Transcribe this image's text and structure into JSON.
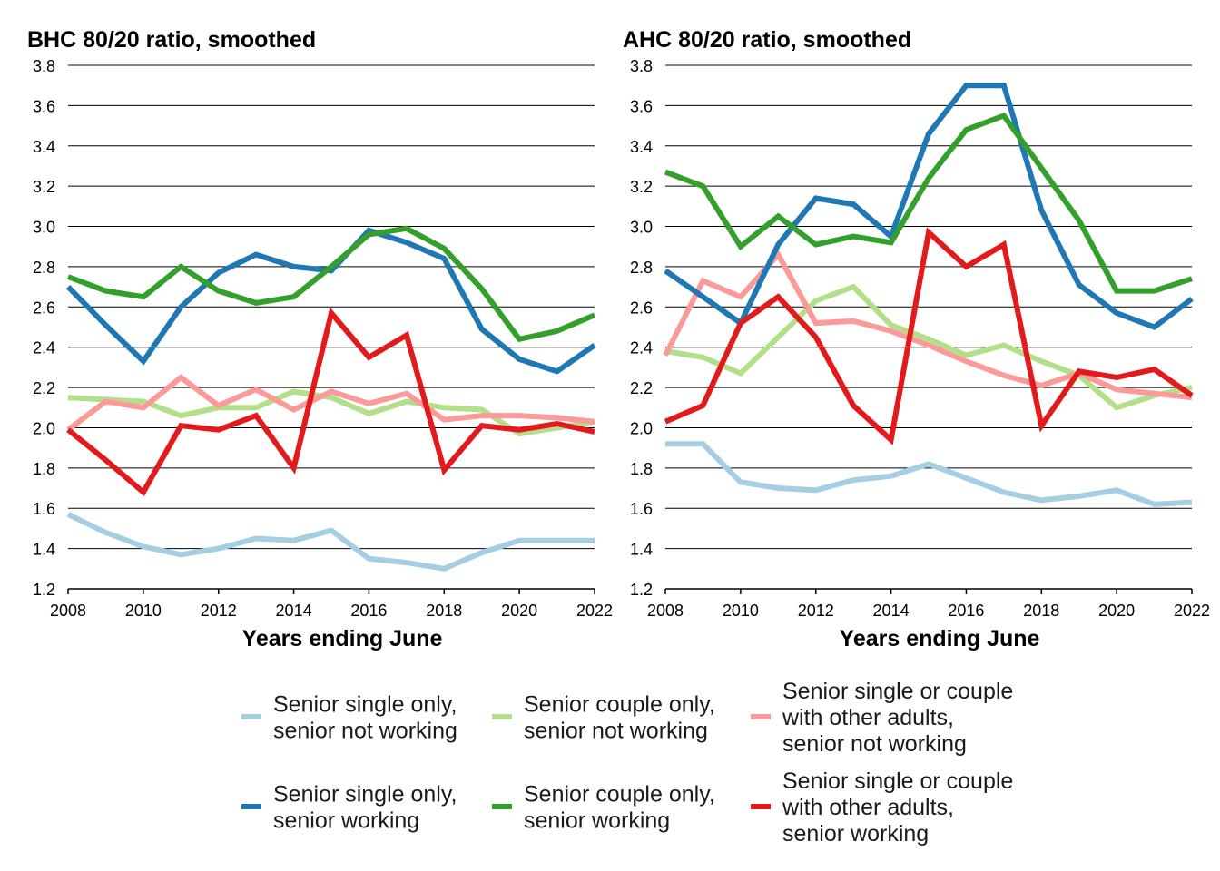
{
  "chart_data": [
    {
      "type": "line",
      "title": "BHC 80/20 ratio, smoothed",
      "xlabel": "Years ending June",
      "ylabel": "",
      "xlim": [
        2008,
        2022
      ],
      "ylim": [
        1.2,
        3.8
      ],
      "x_ticks": [
        "2008",
        "2010",
        "2012",
        "2014",
        "2016",
        "2018",
        "2020",
        "2022"
      ],
      "y_ticks": [
        "1.2",
        "1.4",
        "1.6",
        "1.8",
        "2.0",
        "2.2",
        "2.4",
        "2.6",
        "2.8",
        "3.0",
        "3.2",
        "3.4",
        "3.6",
        "3.8"
      ],
      "grid": true,
      "x": [
        2008,
        2009,
        2010,
        2011,
        2012,
        2013,
        2014,
        2015,
        2016,
        2017,
        2018,
        2019,
        2020,
        2021,
        2022
      ],
      "series": [
        {
          "name": "Senior single only, senior not working",
          "color": "#a6cee3",
          "values": [
            1.57,
            1.48,
            1.41,
            1.37,
            1.4,
            1.45,
            1.44,
            1.49,
            1.35,
            1.33,
            1.3,
            1.38,
            1.44,
            1.44,
            1.44
          ]
        },
        {
          "name": "Senior couple only, senior not working",
          "color": "#b2df8a",
          "values": [
            2.15,
            2.14,
            2.13,
            2.06,
            2.1,
            2.1,
            2.18,
            2.15,
            2.07,
            2.13,
            2.1,
            2.09,
            1.97,
            2.0,
            2.03
          ]
        },
        {
          "name": "Senior single or couple with other adults, senior not working",
          "color": "#fb9a99",
          "values": [
            1.99,
            2.13,
            2.1,
            2.25,
            2.11,
            2.19,
            2.09,
            2.18,
            2.12,
            2.17,
            2.04,
            2.06,
            2.06,
            2.05,
            2.03
          ]
        },
        {
          "name": "Senior single only, senior working",
          "color": "#1f78b4",
          "values": [
            2.7,
            2.51,
            2.33,
            2.6,
            2.77,
            2.86,
            2.8,
            2.78,
            2.98,
            2.92,
            2.84,
            2.49,
            2.34,
            2.28,
            2.41
          ]
        },
        {
          "name": "Senior couple only, senior working",
          "color": "#33a02c",
          "values": [
            2.75,
            2.68,
            2.65,
            2.8,
            2.68,
            2.62,
            2.65,
            2.8,
            2.96,
            2.99,
            2.89,
            2.69,
            2.44,
            2.48,
            2.56
          ]
        },
        {
          "name": "Senior single or couple with other adults, senior working",
          "color": "#e31a1c",
          "values": [
            1.99,
            1.84,
            1.68,
            2.01,
            1.99,
            2.06,
            1.8,
            2.57,
            2.35,
            2.46,
            1.79,
            2.01,
            1.99,
            2.02,
            1.98
          ]
        }
      ]
    },
    {
      "type": "line",
      "title": "AHC 80/20 ratio, smoothed",
      "xlabel": "Years ending June",
      "ylabel": "",
      "xlim": [
        2008,
        2022
      ],
      "ylim": [
        1.2,
        3.8
      ],
      "x_ticks": [
        "2008",
        "2010",
        "2012",
        "2014",
        "2016",
        "2018",
        "2020",
        "2022"
      ],
      "y_ticks": [
        "1.2",
        "1.4",
        "1.6",
        "1.8",
        "2.0",
        "2.2",
        "2.4",
        "2.6",
        "2.8",
        "3.0",
        "3.2",
        "3.4",
        "3.6",
        "3.8"
      ],
      "grid": true,
      "x": [
        2008,
        2009,
        2010,
        2011,
        2012,
        2013,
        2014,
        2015,
        2016,
        2017,
        2018,
        2019,
        2020,
        2021,
        2022
      ],
      "series": [
        {
          "name": "Senior single only, senior not working",
          "color": "#a6cee3",
          "values": [
            1.92,
            1.92,
            1.73,
            1.7,
            1.69,
            1.74,
            1.76,
            1.82,
            1.75,
            1.68,
            1.64,
            1.66,
            1.69,
            1.62,
            1.63
          ]
        },
        {
          "name": "Senior couple only, senior not working",
          "color": "#b2df8a",
          "values": [
            2.38,
            2.35,
            2.27,
            2.45,
            2.63,
            2.7,
            2.51,
            2.44,
            2.36,
            2.41,
            2.33,
            2.26,
            2.1,
            2.16,
            2.2
          ]
        },
        {
          "name": "Senior single or couple with other adults, senior not working",
          "color": "#fb9a99",
          "values": [
            2.36,
            2.73,
            2.65,
            2.86,
            2.52,
            2.53,
            2.48,
            2.41,
            2.33,
            2.26,
            2.21,
            2.27,
            2.19,
            2.17,
            2.15
          ]
        },
        {
          "name": "Senior single only, senior working",
          "color": "#1f78b4",
          "values": [
            2.78,
            2.65,
            2.52,
            2.91,
            3.14,
            3.11,
            2.95,
            3.46,
            3.7,
            3.7,
            3.08,
            2.71,
            2.57,
            2.5,
            2.64
          ]
        },
        {
          "name": "Senior couple only, senior working",
          "color": "#33a02c",
          "values": [
            3.27,
            3.2,
            2.9,
            3.05,
            2.91,
            2.95,
            2.92,
            3.24,
            3.48,
            3.55,
            3.29,
            3.03,
            2.68,
            2.68,
            2.74
          ]
        },
        {
          "name": "Senior single or couple with other adults, senior working",
          "color": "#e31a1c",
          "values": [
            2.03,
            2.11,
            2.52,
            2.65,
            2.45,
            2.11,
            1.94,
            2.97,
            2.8,
            2.91,
            2.01,
            2.28,
            2.25,
            2.29,
            2.16
          ]
        }
      ]
    }
  ],
  "legend": [
    {
      "lines": [
        "Senior single only,",
        "senior not working"
      ],
      "color": "#a6cee3"
    },
    {
      "lines": [
        "Senior couple only,",
        "senior not working"
      ],
      "color": "#b2df8a"
    },
    {
      "lines": [
        "Senior single or couple",
        "with other adults,",
        "senior not working"
      ],
      "color": "#fb9a99"
    },
    {
      "lines": [
        "Senior single only,",
        "senior working"
      ],
      "color": "#1f78b4"
    },
    {
      "lines": [
        "Senior couple only,",
        "senior working"
      ],
      "color": "#33a02c"
    },
    {
      "lines": [
        "Senior single or couple",
        "with other adults,",
        "senior working"
      ],
      "color": "#e31a1c"
    }
  ]
}
